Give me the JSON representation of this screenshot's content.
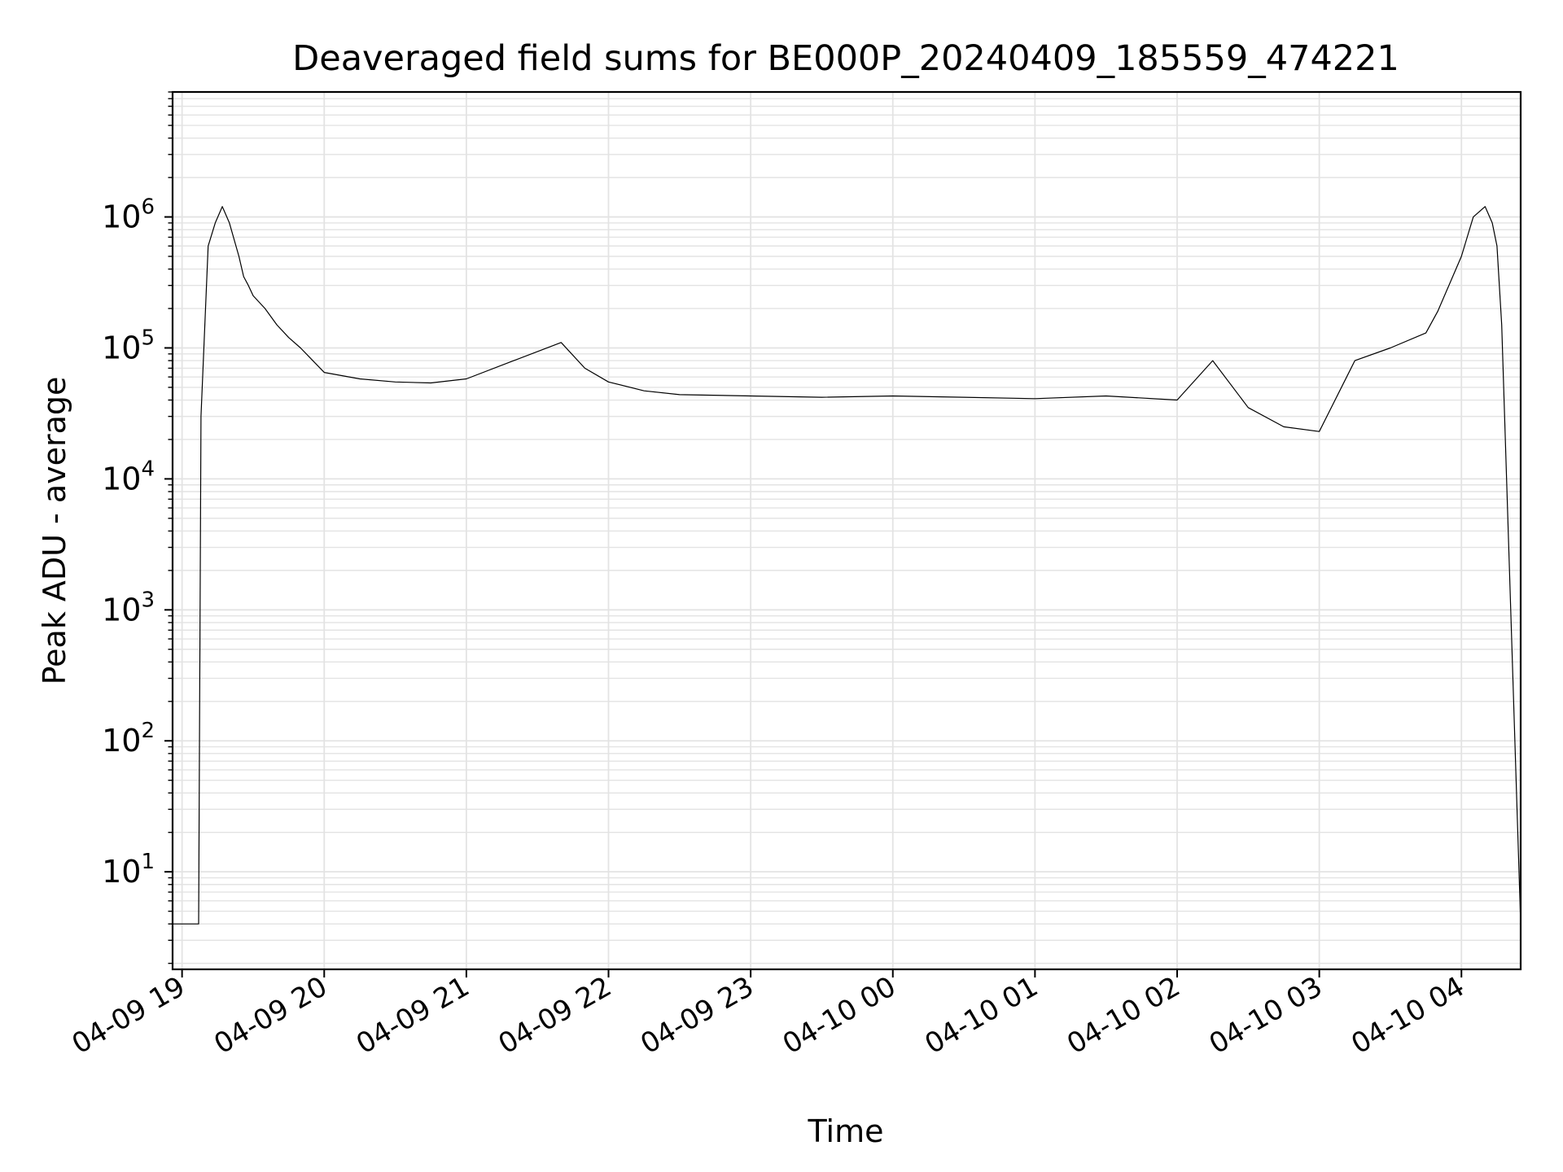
{
  "chart_data": {
    "type": "line",
    "title": "Deaveraged field sums for BE000P_20240409_185559_474221",
    "xlabel": "Time",
    "ylabel": "Peak ADU - average",
    "yscale": "log",
    "ylim": [
      1.8,
      9000000
    ],
    "xlim": [
      "2024-04-09 18:56",
      "2024-04-10 04:25"
    ],
    "grid": true,
    "line_color": "#000000",
    "grid_color": "#e3e3e3",
    "x_ticks": [
      {
        "t": "2024-04-09 19:00",
        "label": "04-09 19"
      },
      {
        "t": "2024-04-09 20:00",
        "label": "04-09 20"
      },
      {
        "t": "2024-04-09 21:00",
        "label": "04-09 21"
      },
      {
        "t": "2024-04-09 22:00",
        "label": "04-09 22"
      },
      {
        "t": "2024-04-09 23:00",
        "label": "04-09 23"
      },
      {
        "t": "2024-04-10 00:00",
        "label": "04-10 00"
      },
      {
        "t": "2024-04-10 01:00",
        "label": "04-10 01"
      },
      {
        "t": "2024-04-10 02:00",
        "label": "04-10 02"
      },
      {
        "t": "2024-04-10 03:00",
        "label": "04-10 03"
      },
      {
        "t": "2024-04-10 04:00",
        "label": "04-10 04"
      }
    ],
    "y_ticks": [
      {
        "value": 10,
        "base": "10",
        "exp": "1"
      },
      {
        "value": 100,
        "base": "10",
        "exp": "2"
      },
      {
        "value": 1000,
        "base": "10",
        "exp": "3"
      },
      {
        "value": 10000,
        "base": "10",
        "exp": "4"
      },
      {
        "value": 100000,
        "base": "10",
        "exp": "5"
      },
      {
        "value": 1000000,
        "base": "10",
        "exp": "6"
      }
    ],
    "series": [
      {
        "x": [
          "2024-04-09 18:56",
          "2024-04-09 19:07",
          "2024-04-09 19:08",
          "2024-04-09 19:11",
          "2024-04-09 19:14",
          "2024-04-09 19:17",
          "2024-04-09 19:20",
          "2024-04-09 19:24",
          "2024-04-09 19:26",
          "2024-04-09 19:28",
          "2024-04-09 19:30",
          "2024-04-09 19:35",
          "2024-04-09 19:40",
          "2024-04-09 19:45",
          "2024-04-09 19:50",
          "2024-04-09 20:00",
          "2024-04-09 20:15",
          "2024-04-09 20:30",
          "2024-04-09 20:45",
          "2024-04-09 21:00",
          "2024-04-09 21:20",
          "2024-04-09 21:40",
          "2024-04-09 21:50",
          "2024-04-09 22:00",
          "2024-04-09 22:15",
          "2024-04-09 22:30",
          "2024-04-09 23:00",
          "2024-04-09 23:30",
          "2024-04-10 00:00",
          "2024-04-10 00:30",
          "2024-04-10 01:00",
          "2024-04-10 01:30",
          "2024-04-10 02:00",
          "2024-04-10 02:15",
          "2024-04-10 02:30",
          "2024-04-10 02:45",
          "2024-04-10 03:00",
          "2024-04-10 03:15",
          "2024-04-10 03:30",
          "2024-04-10 03:45",
          "2024-04-10 03:50",
          "2024-04-10 04:00",
          "2024-04-10 04:05",
          "2024-04-10 04:10",
          "2024-04-10 04:13",
          "2024-04-10 04:15",
          "2024-04-10 04:17",
          "2024-04-10 04:25"
        ],
        "y": [
          4,
          4,
          30000,
          600000,
          900000,
          1200000,
          900000,
          500000,
          350000,
          300000,
          250000,
          200000,
          150000,
          120000,
          100000,
          65000,
          58000,
          55000,
          54000,
          58000,
          80000,
          110000,
          70000,
          55000,
          47000,
          44000,
          43000,
          42000,
          43000,
          42000,
          41000,
          43000,
          40000,
          80000,
          35000,
          25000,
          23000,
          80000,
          100000,
          130000,
          190000,
          500000,
          1000000,
          1200000,
          900000,
          600000,
          150000,
          4
        ]
      }
    ]
  }
}
